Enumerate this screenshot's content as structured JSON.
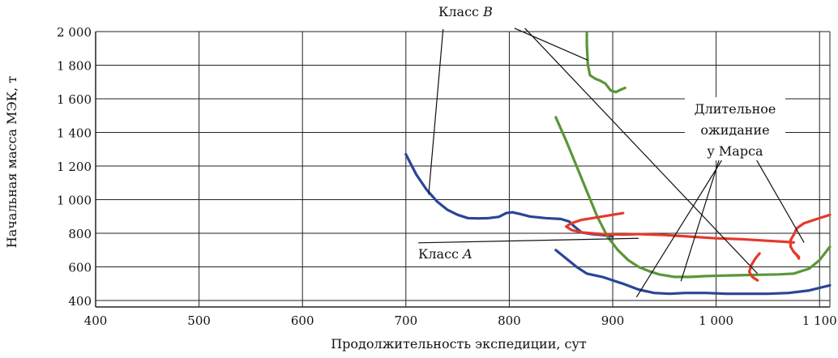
{
  "chart_data": {
    "type": "line",
    "title": "",
    "xlabel": "Продолжительность экспедиции, сут",
    "ylabel": "Начальная масса МЭК, т",
    "xlim": [
      400,
      1110
    ],
    "ylim": [
      380,
      2000
    ],
    "grid": true,
    "x_ticks": [
      {
        "value": 400,
        "label": "400"
      },
      {
        "value": 500,
        "label": "500"
      },
      {
        "value": 600,
        "label": "600"
      },
      {
        "value": 700,
        "label": "700"
      },
      {
        "value": 800,
        "label": "800"
      },
      {
        "value": 900,
        "label": "900"
      },
      {
        "value": 1000,
        "label": "1 000"
      },
      {
        "value": 1100,
        "label": "1 100"
      }
    ],
    "y_ticks": [
      {
        "value": 400,
        "label": "400"
      },
      {
        "value": 600,
        "label": "600"
      },
      {
        "value": 800,
        "label": "800"
      },
      {
        "value": 1000,
        "label": "1 000"
      },
      {
        "value": 1200,
        "label": "1 200"
      },
      {
        "value": 1400,
        "label": "1 400"
      },
      {
        "value": 1600,
        "label": "1 600"
      },
      {
        "value": 1800,
        "label": "1 800"
      },
      {
        "value": 2000,
        "label": "2 000"
      }
    ],
    "series": [
      {
        "name": "blue-1",
        "color": "#2a4597",
        "points": [
          [
            700,
            1270
          ],
          [
            710,
            1150
          ],
          [
            720,
            1060
          ],
          [
            730,
            990
          ],
          [
            740,
            940
          ],
          [
            750,
            910
          ],
          [
            760,
            890
          ],
          [
            770,
            888
          ],
          [
            780,
            890
          ],
          [
            790,
            898
          ],
          [
            797,
            920
          ],
          [
            803,
            925
          ],
          [
            810,
            915
          ],
          [
            820,
            900
          ],
          [
            835,
            890
          ],
          [
            850,
            885
          ],
          [
            858,
            870
          ],
          [
            863,
            840
          ],
          [
            870,
            805
          ],
          [
            880,
            795
          ],
          [
            890,
            790
          ],
          [
            900,
            780
          ]
        ]
      },
      {
        "name": "blue-2",
        "color": "#2a4597",
        "points": [
          [
            845,
            700
          ],
          [
            855,
            650
          ],
          [
            865,
            600
          ],
          [
            875,
            560
          ],
          [
            890,
            540
          ],
          [
            910,
            500
          ],
          [
            925,
            465
          ],
          [
            940,
            445
          ],
          [
            955,
            440
          ],
          [
            970,
            445
          ],
          [
            990,
            445
          ],
          [
            1010,
            440
          ],
          [
            1030,
            440
          ],
          [
            1050,
            440
          ],
          [
            1070,
            445
          ],
          [
            1090,
            460
          ],
          [
            1110,
            490
          ]
        ]
      },
      {
        "name": "green-1",
        "color": "#5a9638",
        "points": [
          [
            875,
            1990
          ],
          [
            875,
            1920
          ],
          [
            876,
            1800
          ],
          [
            878,
            1740
          ],
          [
            883,
            1720
          ],
          [
            888,
            1708
          ],
          [
            893,
            1690
          ],
          [
            898,
            1650
          ],
          [
            903,
            1640
          ],
          [
            908,
            1655
          ],
          [
            912,
            1665
          ]
        ]
      },
      {
        "name": "green-2",
        "color": "#5a9638",
        "points": [
          [
            845,
            1490
          ],
          [
            855,
            1350
          ],
          [
            865,
            1200
          ],
          [
            875,
            1050
          ],
          [
            885,
            900
          ],
          [
            895,
            780
          ],
          [
            905,
            700
          ],
          [
            915,
            640
          ],
          [
            925,
            600
          ],
          [
            935,
            575
          ],
          [
            945,
            555
          ],
          [
            960,
            540
          ],
          [
            975,
            540
          ],
          [
            990,
            545
          ],
          [
            1005,
            548
          ],
          [
            1020,
            550
          ],
          [
            1040,
            553
          ],
          [
            1060,
            555
          ],
          [
            1075,
            560
          ],
          [
            1090,
            590
          ],
          [
            1100,
            640
          ],
          [
            1110,
            720
          ]
        ]
      },
      {
        "name": "red-1",
        "color": "#e43a2a",
        "points": [
          [
            910,
            920
          ],
          [
            890,
            900
          ],
          [
            870,
            880
          ],
          [
            860,
            860
          ],
          [
            855,
            840
          ],
          [
            860,
            820
          ],
          [
            870,
            805
          ],
          [
            890,
            795
          ],
          [
            910,
            792
          ],
          [
            925,
            795
          ]
        ]
      },
      {
        "name": "red-2",
        "color": "#e43a2a",
        "points": [
          [
            925,
            795
          ],
          [
            950,
            790
          ],
          [
            975,
            780
          ],
          [
            1000,
            770
          ],
          [
            1025,
            765
          ],
          [
            1050,
            755
          ],
          [
            1065,
            750
          ],
          [
            1075,
            745
          ]
        ]
      },
      {
        "name": "red-3",
        "color": "#e43a2a",
        "points": [
          [
            1040,
            520
          ],
          [
            1035,
            540
          ],
          [
            1032,
            570
          ],
          [
            1034,
            610
          ],
          [
            1038,
            650
          ],
          [
            1042,
            680
          ]
        ]
      },
      {
        "name": "red-4",
        "color": "#e43a2a",
        "points": [
          [
            1080,
            660
          ],
          [
            1075,
            690
          ],
          [
            1072,
            720
          ],
          [
            1072,
            760
          ],
          [
            1075,
            790
          ],
          [
            1078,
            830
          ],
          [
            1085,
            860
          ],
          [
            1095,
            880
          ],
          [
            1105,
            900
          ],
          [
            1110,
            910
          ]
        ]
      },
      {
        "name": "red-5",
        "color": "#e43a2a",
        "points": [
          [
            1075,
            690
          ],
          [
            1078,
            670
          ],
          [
            1080,
            650
          ]
        ]
      }
    ],
    "annotations": [
      {
        "text": "Класс B",
        "anchor_value": [
          770,
          2045
        ],
        "targets": [
          [
            876,
            1830
          ],
          [
            1040,
            560
          ]
        ],
        "source": [
          [
            805,
            2020
          ],
          [
            815,
            2020
          ]
        ]
      },
      {
        "text": "Класс B",
        "anchor_value": [
          770,
          2045
        ],
        "targets": [
          [
            722,
            1030
          ]
        ],
        "source": [
          [
            736,
            2015
          ]
        ]
      },
      {
        "text": "Класс A",
        "anchor_value": [
          655,
          740
        ],
        "targets": [
          [
            925,
            770
          ]
        ],
        "source": [
          [
            712,
            743
          ]
        ]
      },
      {
        "text": "Длительное\nожидание\nу Марса",
        "anchor_value": [
          1015,
          1480
        ],
        "targets": [
          [
            923,
            420
          ],
          [
            966,
            515
          ],
          [
            1085,
            745
          ]
        ],
        "source": [
          [
            1010,
            1280
          ],
          [
            1005,
            1280
          ],
          [
            1035,
            1280
          ]
        ]
      }
    ],
    "annotation_lines": {
      "class_b": "Класс",
      "class_b_letter": "B",
      "class_a": "Класс",
      "class_a_letter": "A",
      "mars_line1": "Длительное",
      "mars_line2": "ожидание",
      "mars_line3": "у Марса"
    }
  }
}
